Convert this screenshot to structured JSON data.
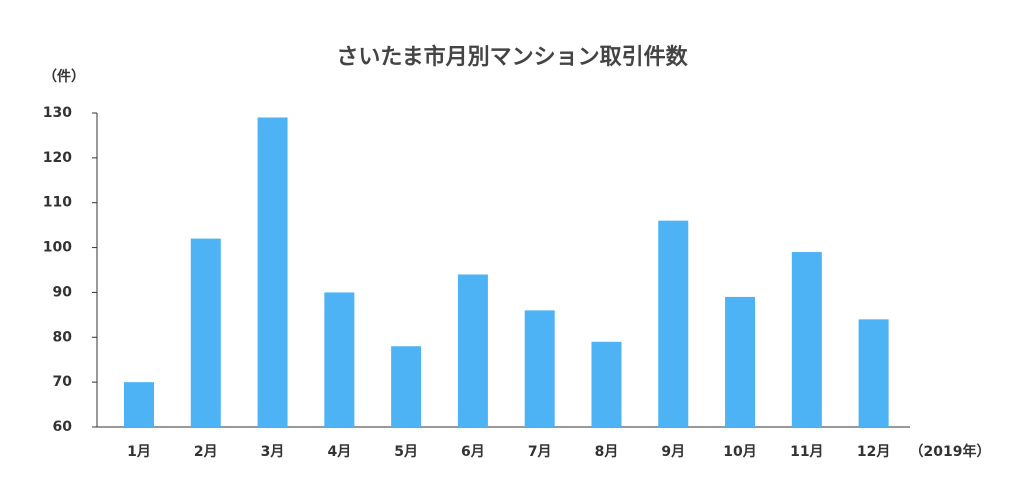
{
  "chart_data": {
    "type": "bar",
    "title": "さいたま市月別マンション取引件数",
    "y_unit_label": "（件）",
    "x_unit_label": "（2019年）",
    "categories": [
      "1月",
      "2月",
      "3月",
      "4月",
      "5月",
      "6月",
      "7月",
      "8月",
      "9月",
      "10月",
      "11月",
      "12月"
    ],
    "values": [
      70,
      102,
      129,
      90,
      78,
      94,
      86,
      79,
      106,
      89,
      99,
      84
    ],
    "color": "#4db3f5",
    "ylim": [
      60,
      130
    ],
    "yticks": [
      60,
      70,
      80,
      90,
      100,
      110,
      120,
      130
    ],
    "grid": false
  }
}
